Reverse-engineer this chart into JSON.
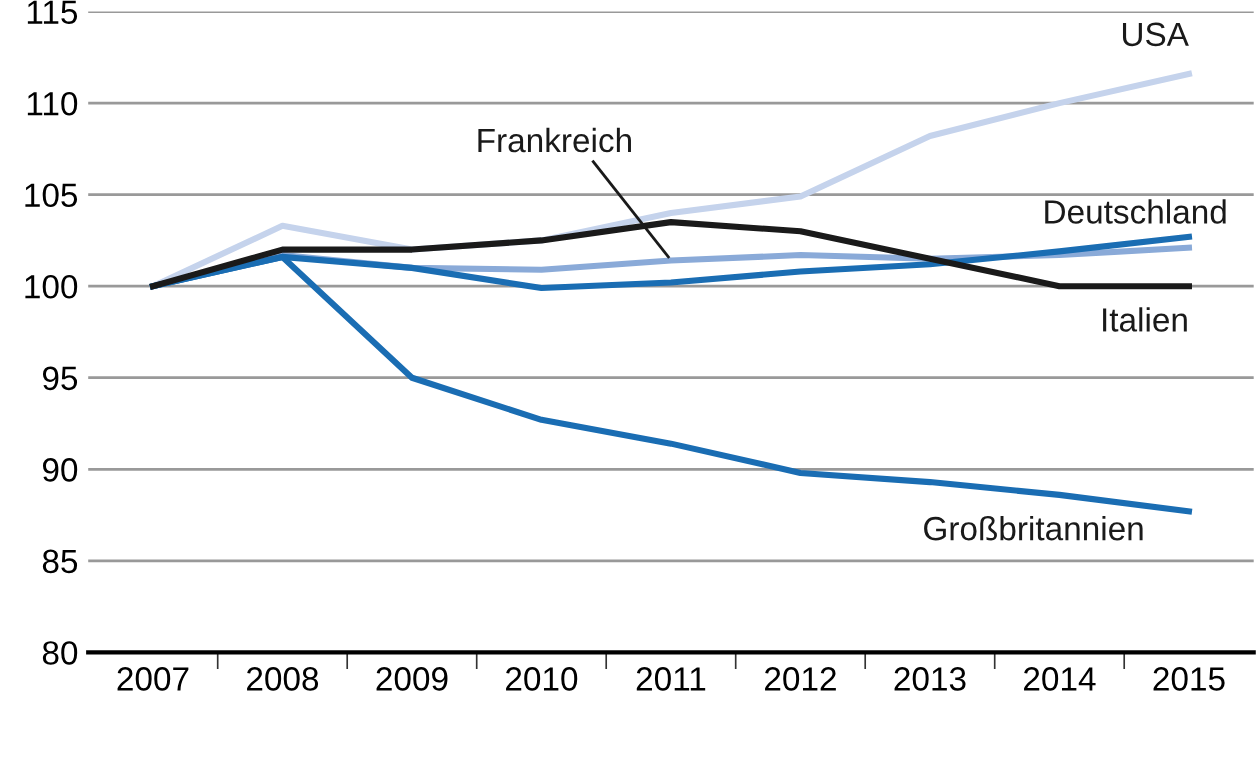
{
  "chart_data": {
    "type": "line",
    "categories": [
      "2007",
      "2008",
      "2009",
      "2010",
      "2011",
      "2012",
      "2013",
      "2014",
      "2015"
    ],
    "series": [
      {
        "name": "USA",
        "color": "#c5d3ec",
        "values": [
          100,
          103.3,
          102.0,
          102.5,
          104.0,
          104.9,
          108.2,
          110.0,
          111.6
        ]
      },
      {
        "name": "Frankreich",
        "color": "#8aaad8",
        "values": [
          100,
          101.7,
          101.0,
          100.9,
          101.4,
          101.7,
          101.5,
          101.7,
          102.1
        ]
      },
      {
        "name": "Deutschland",
        "color": "#1a6db3",
        "values": [
          100,
          101.6,
          101.0,
          99.9,
          100.2,
          100.8,
          101.2,
          101.9,
          102.7
        ]
      },
      {
        "name": "Italien",
        "color": "#1a1a1a",
        "values": [
          100,
          102.0,
          102.0,
          102.5,
          103.5,
          103.0,
          101.5,
          100.0,
          100.0
        ]
      },
      {
        "name": "Großbritannien",
        "color": "#1a6db3",
        "values": [
          100,
          101.6,
          95.0,
          92.7,
          91.4,
          89.8,
          89.3,
          88.6,
          87.7
        ]
      }
    ],
    "ylim": [
      80,
      115
    ],
    "yticks": [
      80,
      85,
      90,
      95,
      100,
      105,
      110,
      115
    ],
    "grid": "y",
    "legend": false,
    "marker": "none",
    "line_style": "solid"
  }
}
